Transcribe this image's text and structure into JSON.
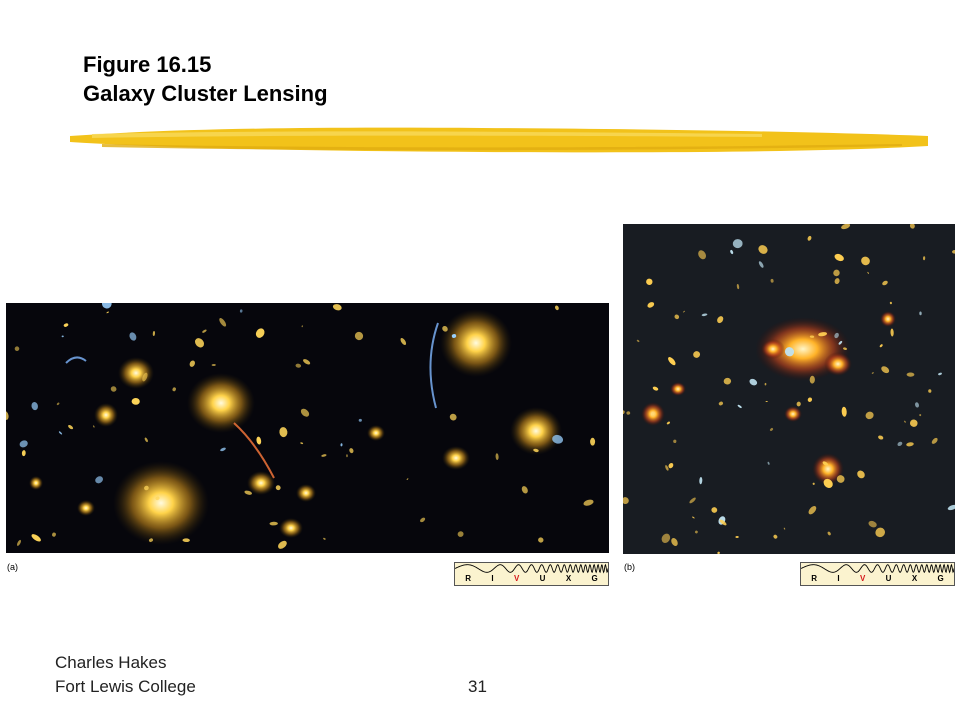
{
  "slide": {
    "title_line1": "Figure 16.15",
    "title_line2": "Galaxy Cluster Lensing",
    "accent_color": "#f2c21a"
  },
  "figure": {
    "panel_a_label": "(a)",
    "panel_b_label": "(b)",
    "spectrum_bands": [
      "R",
      "I",
      "V",
      "U",
      "X",
      "G"
    ],
    "highlighted_band": "V",
    "highlight_color": "#d6181c"
  },
  "footer": {
    "author": "Charles Hakes",
    "college": "Fort Lewis College",
    "slide_number": "31"
  }
}
